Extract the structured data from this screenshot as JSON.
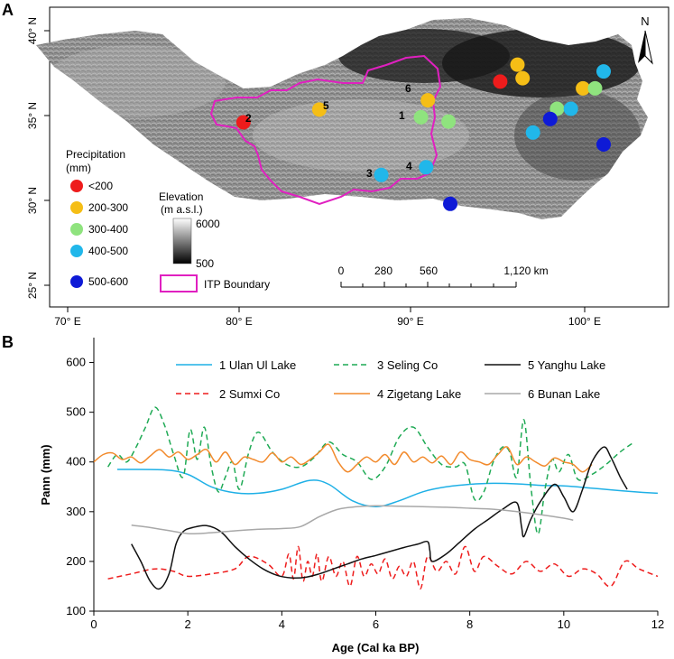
{
  "panel_a": {
    "label": "A",
    "x_ticks": [
      "70° E",
      "80° E",
      "90° E",
      "100° E"
    ],
    "y_ticks": [
      "40° N",
      "35° N",
      "30° N",
      "25° N"
    ],
    "north_label": "N",
    "legend": {
      "title_line1": "Precipitation",
      "title_line2": "(mm)",
      "classes": [
        {
          "label": "<200",
          "color": "#ee1c1c"
        },
        {
          "label": "200-300",
          "color": "#f5be16"
        },
        {
          "label": "300-400",
          "color": "#8fe37e"
        },
        {
          "label": "400-500",
          "color": "#21b7ea"
        },
        {
          "label": "500-600",
          "color": "#0e1ad6"
        }
      ],
      "boundary_label": "ITP Boundary",
      "boundary_color": "#e020c0"
    },
    "elevation": {
      "title_line1": "Elevation",
      "title_line2": "(m a.s.l.)",
      "max": "6000",
      "min": "500"
    },
    "scale_bar": {
      "labels": [
        "0",
        "280",
        "560",
        "1,120 km"
      ]
    },
    "site_labels": [
      {
        "id": "1"
      },
      {
        "id": "2"
      },
      {
        "id": "3"
      },
      {
        "id": "4"
      },
      {
        "id": "5"
      },
      {
        "id": "6"
      }
    ],
    "sites": [
      {
        "lon": 80.2,
        "lat": 34.6,
        "cls": 0
      },
      {
        "lon": 84.6,
        "lat": 35.35,
        "cls": 1
      },
      {
        "lon": 90.9,
        "lat": 35.9,
        "cls": 1
      },
      {
        "lon": 90.5,
        "lat": 34.9,
        "cls": 2
      },
      {
        "lon": 92.1,
        "lat": 34.65,
        "cls": 2
      },
      {
        "lon": 88.2,
        "lat": 31.5,
        "cls": 3
      },
      {
        "lon": 90.8,
        "lat": 31.95,
        "cls": 3
      },
      {
        "lon": 92.2,
        "lat": 29.8,
        "cls": 4
      },
      {
        "lon": 95.1,
        "lat": 37.0,
        "cls": 0
      },
      {
        "lon": 96.1,
        "lat": 38.0,
        "cls": 1
      },
      {
        "lon": 96.4,
        "lat": 37.2,
        "cls": 1
      },
      {
        "lon": 99.9,
        "lat": 36.6,
        "cls": 1
      },
      {
        "lon": 100.6,
        "lat": 36.6,
        "cls": 2
      },
      {
        "lon": 98.4,
        "lat": 35.4,
        "cls": 2
      },
      {
        "lon": 99.2,
        "lat": 35.4,
        "cls": 3
      },
      {
        "lon": 101.1,
        "lat": 37.6,
        "cls": 3
      },
      {
        "lon": 97.0,
        "lat": 34.0,
        "cls": 3
      },
      {
        "lon": 98.0,
        "lat": 34.8,
        "cls": 4
      },
      {
        "lon": 101.1,
        "lat": 33.3,
        "cls": 4
      }
    ]
  },
  "chart_data": {
    "type": "line",
    "panel_label": "B",
    "xlabel": "Age (Cal ka BP)",
    "ylabel": "Pann (mm)",
    "xlim": [
      0,
      12
    ],
    "ylim": [
      100,
      650
    ],
    "x_ticks": [
      "0",
      "2",
      "4",
      "6",
      "8",
      "10",
      "12"
    ],
    "y_ticks": [
      "100",
      "200",
      "300",
      "400",
      "500",
      "600"
    ],
    "series": [
      {
        "name": "1 Ulan Ul Lake",
        "color": "#1fb0e6",
        "dash": "solid",
        "x": [
          0.5,
          1.5,
          2.0,
          2.5,
          3.0,
          3.5,
          4.0,
          4.6,
          5.0,
          5.5,
          6.0,
          6.5,
          7.0,
          7.5,
          8.0,
          8.5,
          9.0,
          9.5,
          10.0,
          10.5,
          11.0,
          11.5,
          12.0
        ],
        "y": [
          385,
          384,
          375,
          350,
          338,
          337,
          345,
          363,
          355,
          322,
          310,
          322,
          340,
          350,
          355,
          357,
          356,
          353,
          352,
          348,
          344,
          340,
          337
        ]
      },
      {
        "name": "2 Sumxi Co",
        "color": "#ee1c1c",
        "dash": "dashed",
        "x": [
          0.3,
          0.8,
          1.3,
          1.7,
          2.0,
          2.5,
          3.0,
          3.3,
          3.7,
          4.0,
          4.15,
          4.25,
          4.35,
          4.45,
          4.55,
          4.65,
          4.75,
          4.85,
          5.0,
          5.15,
          5.3,
          5.45,
          5.6,
          5.75,
          5.9,
          6.05,
          6.2,
          6.35,
          6.5,
          6.65,
          6.8,
          6.95,
          7.1,
          7.3,
          7.5,
          7.7,
          7.9,
          8.1,
          8.3,
          8.6,
          8.9,
          9.2,
          9.5,
          9.8,
          10.1,
          10.4,
          10.7,
          11.0,
          11.3,
          11.6,
          12.0
        ],
        "y": [
          165,
          175,
          185,
          180,
          170,
          175,
          185,
          210,
          195,
          170,
          215,
          165,
          230,
          160,
          200,
          170,
          215,
          160,
          210,
          170,
          200,
          150,
          210,
          170,
          195,
          175,
          205,
          165,
          190,
          170,
          200,
          145,
          210,
          180,
          200,
          175,
          230,
          180,
          210,
          190,
          175,
          200,
          180,
          195,
          170,
          185,
          175,
          150,
          200,
          185,
          170
        ]
      },
      {
        "name": "3 Seling Co",
        "color": "#1faa55",
        "dash": "dashed",
        "x": [
          0.3,
          0.5,
          0.7,
          0.9,
          1.1,
          1.3,
          1.5,
          1.7,
          1.9,
          2.05,
          2.2,
          2.35,
          2.5,
          2.65,
          2.8,
          2.95,
          3.1,
          3.3,
          3.5,
          3.8,
          4.1,
          4.4,
          4.7,
          5.0,
          5.3,
          5.6,
          5.9,
          6.2,
          6.5,
          6.8,
          7.1,
          7.4,
          7.7,
          7.9,
          8.1,
          8.3,
          8.5,
          8.7,
          8.85,
          9.0,
          9.15,
          9.3,
          9.45,
          9.6,
          9.75,
          9.9,
          10.1,
          10.3,
          10.6,
          10.9,
          11.2,
          11.5
        ],
        "y": [
          390,
          415,
          400,
          430,
          470,
          510,
          475,
          415,
          370,
          465,
          405,
          470,
          390,
          340,
          370,
          400,
          345,
          420,
          460,
          420,
          395,
          390,
          410,
          440,
          415,
          400,
          365,
          390,
          450,
          470,
          430,
          395,
          390,
          395,
          325,
          340,
          400,
          430,
          420,
          370,
          485,
          350,
          255,
          345,
          405,
          380,
          415,
          365,
          375,
          395,
          420,
          440
        ]
      },
      {
        "name": "4 Zigetang Lake",
        "color": "#f28a2c",
        "dash": "solid",
        "x": [
          0.0,
          0.2,
          0.4,
          0.6,
          0.8,
          1.0,
          1.2,
          1.4,
          1.6,
          1.8,
          2.0,
          2.2,
          2.4,
          2.6,
          2.8,
          3.0,
          3.2,
          3.4,
          3.6,
          3.8,
          4.0,
          4.2,
          4.4,
          4.6,
          4.8,
          5.0,
          5.2,
          5.4,
          5.6,
          5.8,
          6.0,
          6.2,
          6.4,
          6.6,
          6.8,
          7.0,
          7.2,
          7.4,
          7.6,
          7.8,
          8.0,
          8.2,
          8.4,
          8.6,
          8.8,
          9.0,
          9.2,
          9.4,
          9.6,
          9.8,
          10.0,
          10.2,
          10.4,
          10.6
        ],
        "y": [
          400,
          415,
          418,
          405,
          410,
          398,
          412,
          425,
          410,
          420,
          405,
          415,
          425,
          400,
          420,
          395,
          410,
          405,
          400,
          418,
          400,
          410,
          395,
          405,
          420,
          435,
          400,
          380,
          395,
          410,
          400,
          415,
          395,
          420,
          400,
          410,
          398,
          412,
          395,
          420,
          405,
          400,
          395,
          415,
          430,
          395,
          410,
          400,
          392,
          408,
          400,
          395,
          380,
          395
        ]
      },
      {
        "name": "5 Yanghu Lake",
        "color": "#111111",
        "dash": "solid",
        "x": [
          0.8,
          1.0,
          1.2,
          1.4,
          1.6,
          1.75,
          1.9,
          2.1,
          2.4,
          2.7,
          3.0,
          3.3,
          3.6,
          3.9,
          4.2,
          4.5,
          4.8,
          5.1,
          5.4,
          5.7,
          6.0,
          6.3,
          6.6,
          6.9,
          7.1,
          7.15,
          7.2,
          7.5,
          7.8,
          8.1,
          8.4,
          8.7,
          9.0,
          9.1,
          9.15,
          9.3,
          9.5,
          9.8,
          10.0,
          10.2,
          10.4,
          10.6,
          10.85,
          11.0,
          11.2,
          11.35
        ],
        "y": [
          235,
          200,
          160,
          145,
          175,
          235,
          260,
          268,
          272,
          260,
          230,
          205,
          185,
          172,
          167,
          168,
          175,
          185,
          195,
          205,
          212,
          220,
          228,
          235,
          240,
          222,
          200,
          215,
          240,
          265,
          285,
          305,
          318,
          270,
          250,
          285,
          320,
          355,
          330,
          300,
          345,
          400,
          430,
          410,
          370,
          345
        ]
      },
      {
        "name": "6 Bunan Lake",
        "color": "#a8a8a8",
        "dash": "solid",
        "x": [
          0.8,
          1.2,
          1.6,
          2.0,
          2.4,
          2.8,
          3.2,
          3.6,
          4.0,
          4.4,
          4.8,
          5.2,
          5.6,
          6.0,
          6.5,
          7.0,
          7.5,
          8.0,
          8.5,
          9.0,
          9.5,
          10.0,
          10.2
        ],
        "y": [
          273,
          268,
          262,
          256,
          257,
          260,
          263,
          265,
          266,
          270,
          290,
          305,
          310,
          312,
          311,
          310,
          309,
          307,
          305,
          300,
          294,
          287,
          283
        ]
      }
    ]
  }
}
